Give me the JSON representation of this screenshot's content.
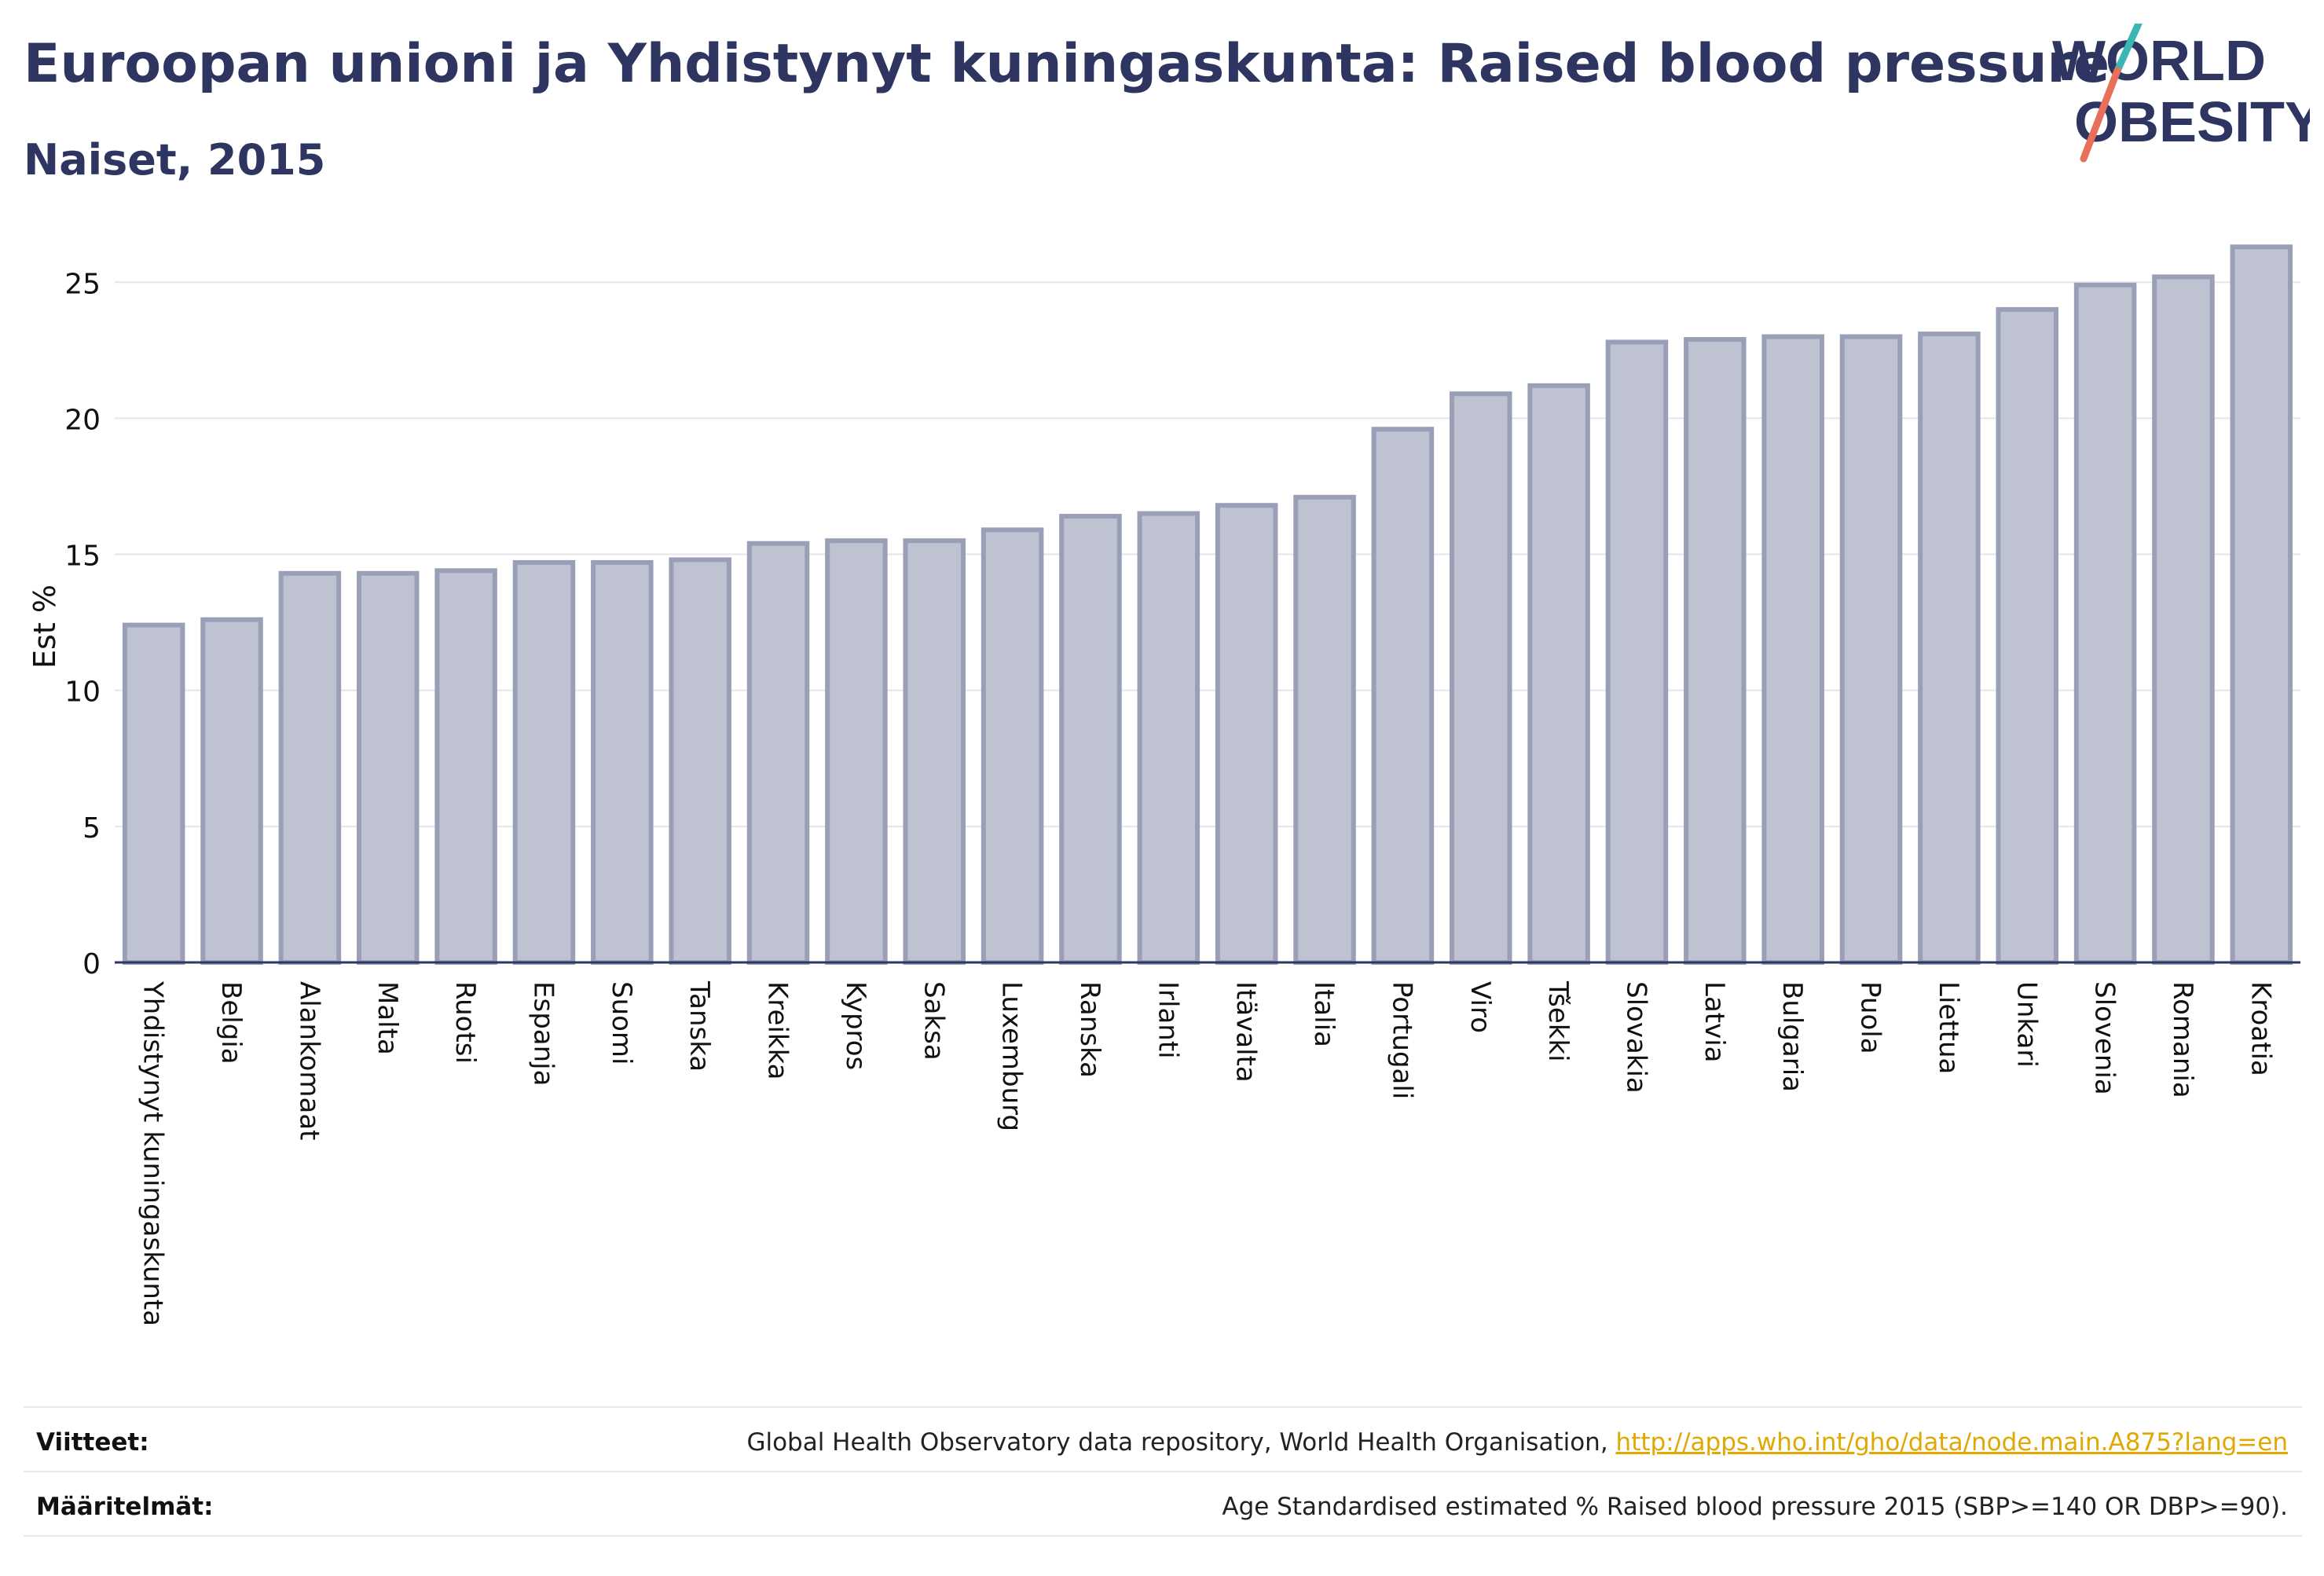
{
  "header": {
    "title": "Euroopan unioni ja Yhdistynyt kuningaskunta: Raised blood pressure",
    "subtitle": "Naiset, 2015"
  },
  "logo": {
    "line1": "WORLD",
    "line2": "OBESITY"
  },
  "colors": {
    "bar_fill": "#bfc2d0",
    "bar_stroke": "#9a9fb8",
    "title": "#2d3560",
    "link": "#e0a800",
    "logo_teal": "#3ab7b5",
    "logo_coral": "#e8705a"
  },
  "chart_data": {
    "type": "bar",
    "ylabel": "Est %",
    "xlabel": "",
    "ylim": [
      0,
      27
    ],
    "yticks": [
      0,
      5,
      10,
      15,
      20,
      25
    ],
    "grid": true,
    "categories": [
      "Yhdistynyt kuningaskunta",
      "Belgia",
      "Alankomaat",
      "Malta",
      "Ruotsi",
      "Espanja",
      "Suomi",
      "Tanska",
      "Kreikka",
      "Kypros",
      "Saksa",
      "Luxemburg",
      "Ranska",
      "Irlanti",
      "Itävalta",
      "Italia",
      "Portugali",
      "Viro",
      "Tšekki",
      "Slovakia",
      "Latvia",
      "Bulgaria",
      "Puola",
      "Liettua",
      "Unkari",
      "Slovenia",
      "Romania",
      "Kroatia"
    ],
    "values": [
      12.4,
      12.6,
      14.3,
      14.3,
      14.4,
      14.7,
      14.7,
      14.8,
      15.4,
      15.5,
      15.5,
      15.9,
      16.4,
      16.5,
      16.8,
      17.1,
      19.6,
      20.9,
      21.2,
      22.8,
      22.9,
      23.0,
      23.0,
      23.1,
      24.0,
      24.9,
      25.2,
      26.3
    ]
  },
  "footer": {
    "sources_label": "Viitteet:",
    "sources_text": "Global Health Observatory data repository, World Health Organisation, ",
    "sources_link": "http://apps.who.int/gho/data/node.main.A875?lang=en",
    "definitions_label": "Määritelmät:",
    "definitions_text": "Age Standardised estimated % Raised blood pressure 2015 (SBP>=140 OR DBP>=90)."
  }
}
